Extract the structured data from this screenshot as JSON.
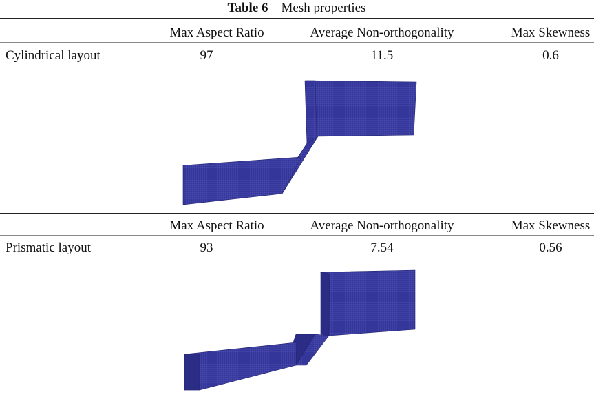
{
  "caption": {
    "label": "Table 6",
    "title": "Mesh properties"
  },
  "sections": [
    {
      "header": [
        "Max Aspect Ratio",
        "Average Non-orthogonality",
        "Max Skewness"
      ],
      "row": {
        "label": "Cylindrical layout",
        "values": [
          97,
          11.5,
          0.6
        ]
      }
    },
    {
      "header": [
        "Max Aspect Ratio",
        "Average Non-orthogonality",
        "Max Skewness"
      ],
      "row": {
        "label": "Prismatic layout",
        "values": [
          93,
          7.54,
          0.56
        ]
      }
    }
  ]
}
